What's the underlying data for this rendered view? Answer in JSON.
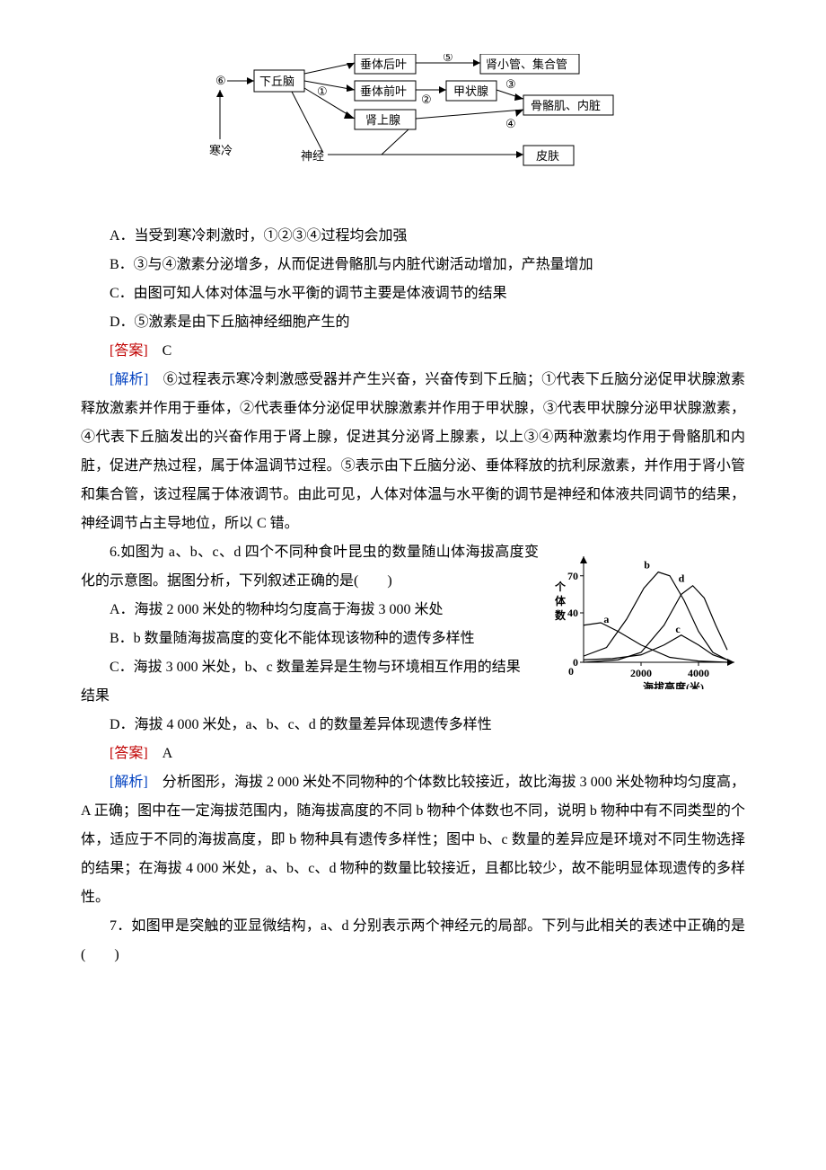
{
  "diagram": {
    "circ6": "⑥",
    "cold": "寒冷",
    "hypothalamus": "下丘脑",
    "circ1": "①",
    "nerve": "神经",
    "pituitary_post": "垂体后叶",
    "pituitary_ant": "垂体前叶",
    "adrenal": "肾上腺",
    "circ2": "②",
    "circ5": "⑤",
    "kidney": "肾小管、集合管",
    "thyroid": "甲状腺",
    "circ3": "③",
    "circ4": "④",
    "skeletal": "骨骼肌、内脏",
    "skin": "皮肤",
    "box_stroke": "#000000",
    "font_size": 13
  },
  "q5": {
    "optA": "A．当受到寒冷刺激时，①②③④过程均会加强",
    "optB": "B．③与④激素分泌增多，从而促进骨骼肌与内脏代谢活动增加，产热量增加",
    "optC": "C．由图可知人体对体温与水平衡的调节主要是体液调节的结果",
    "optD": "D．⑤激素是由下丘脑神经细胞产生的",
    "ans_label": "[答案]",
    "ans": "　C",
    "exp_label": "[解析]",
    "exp": "　⑥过程表示寒冷刺激感受器并产生兴奋，兴奋传到下丘脑；①代表下丘脑分泌促甲状腺激素释放激素并作用于垂体，②代表垂体分泌促甲状腺激素并作用于甲状腺，③代表甲状腺分泌甲状腺激素，④代表下丘脑发出的兴奋作用于肾上腺，促进其分泌肾上腺素，以上③④两种激素均作用于骨骼肌和内脏，促进产热过程，属于体温调节过程。⑤表示由下丘脑分泌、垂体释放的抗利尿激素，并作用于肾小管和集合管，该过程属于体液调节。由此可见，人体对体温与水平衡的调节是神经和体液共同调节的结果，神经调节占主导地位，所以 C 错。"
  },
  "q6": {
    "stem": "6.如图为 a、b、c、d 四个不同种食叶昆虫的数量随山体海拔高度变化的示意图。据图分析，下列叙述正确的是(　　)",
    "optA": "A．海拔 2 000 米处的物种均匀度高于海拔 3 000 米处",
    "optB": "B．b 数量随海拔高度的变化不能体现该物种的遗传多样性",
    "optC": "C．海拔 3 000 米处，b、c 数量差异是生物与环境相互作用的结果",
    "optC_tail": "",
    "optD": "D．海拔 4 000 米处，a、b、c、d 的数量差异体现遗传多样性",
    "ans_label": "[答案]",
    "ans": "　A",
    "exp_label": "[解析]",
    "exp": "　分析图形，海拔 2 000 米处不同物种的个体数比较接近，故比海拔 3 000 米处物种均匀度高，A 正确；图中在一定海拔范围内，随海拔高度的不同 b 物种个体数也不同，说明 b 物种中有不同类型的个体，适应于不同的海拔高度，即 b 物种具有遗传多样性；图中 b、c 数量的差异应是环境对不同生物选择的结果；在海拔 4 000 米处，a、b、c、d 物种的数量比较接近，且都比较少，故不能明显体现遗传的多样性。",
    "chart": {
      "y_label_vertical": "个体数",
      "x_label": "海拔高度(米)",
      "y_ticks": [
        0,
        40,
        70
      ],
      "x_ticks": [
        0,
        2000,
        4000
      ],
      "x_range": [
        0,
        5000
      ],
      "y_range": [
        0,
        80
      ],
      "stroke": "#000000",
      "font_size": 12,
      "series": {
        "a": {
          "label": "a",
          "label_pos": [
            700,
            32
          ],
          "points": [
            [
              0,
              30
            ],
            [
              600,
              32
            ],
            [
              1200,
              25
            ],
            [
              2000,
              14
            ],
            [
              3000,
              4
            ],
            [
              4000,
              1
            ],
            [
              5000,
              0
            ]
          ]
        },
        "b": {
          "label": "b",
          "label_pos": [
            2100,
            76
          ],
          "points": [
            [
              0,
              5
            ],
            [
              800,
              12
            ],
            [
              1500,
              35
            ],
            [
              2100,
              60
            ],
            [
              2600,
              73
            ],
            [
              3000,
              70
            ],
            [
              3500,
              50
            ],
            [
              4000,
              25
            ],
            [
              4500,
              8
            ],
            [
              5000,
              2
            ]
          ]
        },
        "c": {
          "label": "c",
          "label_pos": [
            3200,
            24
          ],
          "points": [
            [
              0,
              2
            ],
            [
              1000,
              3
            ],
            [
              2000,
              6
            ],
            [
              2800,
              14
            ],
            [
              3400,
              22
            ],
            [
              4000,
              14
            ],
            [
              4500,
              6
            ],
            [
              5000,
              2
            ]
          ]
        },
        "d": {
          "label": "d",
          "label_pos": [
            3300,
            65
          ],
          "points": [
            [
              0,
              0
            ],
            [
              1200,
              2
            ],
            [
              2000,
              8
            ],
            [
              2800,
              30
            ],
            [
              3400,
              55
            ],
            [
              3800,
              62
            ],
            [
              4200,
              52
            ],
            [
              4600,
              30
            ],
            [
              5000,
              10
            ]
          ]
        }
      }
    }
  },
  "q7": {
    "stem": "7．如图甲是突触的亚显微结构，a、d 分别表示两个神经元的局部。下列与此相关的表述中正确的是(　　)"
  }
}
